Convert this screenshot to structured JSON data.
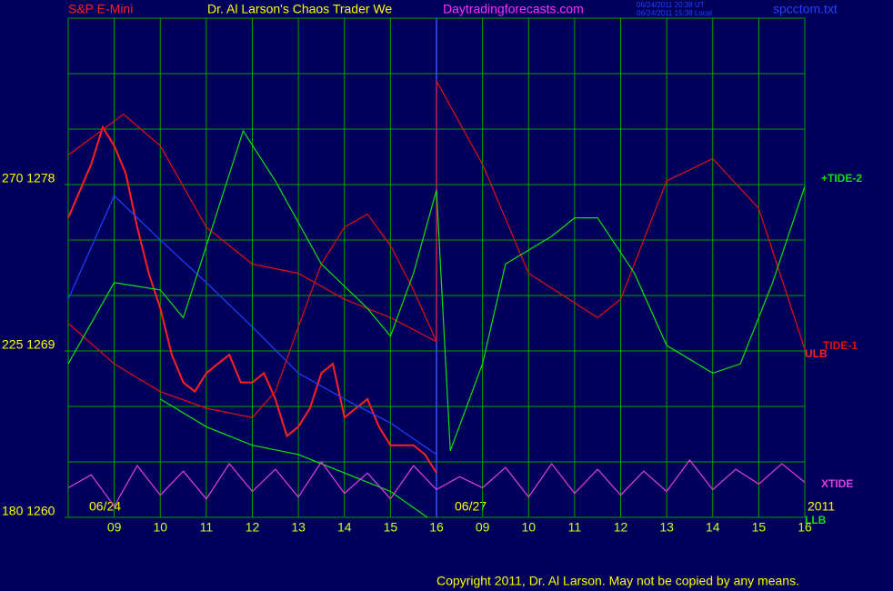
{
  "chart_data": {
    "type": "line",
    "title": "S&P E-Mini",
    "subtitle": "Dr. Al Larson's Chaos Trader We",
    "site": "Daytradingforecasts.com",
    "timestamps": [
      "06/24/2011 20:38 UT",
      "06/24/2011 15:38 Local"
    ],
    "file": "spcctom.txt",
    "footer": "Copyright 2011, Dr. Al Larson. May not be copied by any means.",
    "annotations": [
      "06/24",
      "06/27",
      "2011",
      "ULB",
      "LLB"
    ],
    "xlim": [
      0,
      16
    ],
    "xticks": [
      {
        "value": 1,
        "label": "09"
      },
      {
        "value": 2,
        "label": "10"
      },
      {
        "value": 3,
        "label": "11"
      },
      {
        "value": 4,
        "label": "12"
      },
      {
        "value": 5,
        "label": "13"
      },
      {
        "value": 6,
        "label": "14"
      },
      {
        "value": 7,
        "label": "15"
      },
      {
        "value": 8,
        "label": "16"
      },
      {
        "value": 9,
        "label": "09"
      },
      {
        "value": 10,
        "label": "10"
      },
      {
        "value": 11,
        "label": "11"
      },
      {
        "value": 12,
        "label": "12"
      },
      {
        "value": 13,
        "label": "13"
      },
      {
        "value": 14,
        "label": "14"
      },
      {
        "value": 15,
        "label": "15"
      },
      {
        "value": 16,
        "label": "16"
      }
    ],
    "ylim": [
      1260,
      1287
    ],
    "yticks": [
      {
        "value": 1260,
        "label": "180  1260"
      },
      {
        "value": 1269,
        "label": "225  1269"
      },
      {
        "value": 1278,
        "label": "270  1278"
      }
    ],
    "grid": true,
    "series": [
      {
        "color": "#ff2020",
        "x": [
          0,
          0.5,
          0.75,
          1,
          1.25,
          1.5,
          1.75,
          2,
          2.25,
          2.5,
          2.75,
          3,
          3.25,
          3.5,
          3.75,
          4,
          4.25,
          4.5,
          4.75,
          5,
          5.25,
          5.5,
          5.75,
          6,
          6.25,
          6.5,
          6.75,
          7,
          7.25,
          7.5,
          7.75,
          8
        ],
        "values": [
          1276.2,
          1279.1,
          1281.1,
          1280.1,
          1278.6,
          1275.7,
          1273.2,
          1271.3,
          1268.8,
          1267.3,
          1266.8,
          1267.8,
          1268.3,
          1268.8,
          1267.3,
          1267.3,
          1267.8,
          1266.4,
          1264.4,
          1264.9,
          1265.9,
          1267.8,
          1268.3,
          1265.4,
          1265.9,
          1266.4,
          1264.9,
          1263.9,
          1263.9,
          1263.9,
          1263.4,
          1262.4
        ]
      },
      {
        "color": "#2040ff",
        "x": [
          0,
          1,
          2,
          3,
          4,
          5,
          6,
          7,
          8
        ],
        "values": [
          1271.8,
          1277.4,
          1275.0,
          1272.7,
          1270.3,
          1267.8,
          1266.4,
          1265.1,
          1263.4
        ]
      },
      {
        "name": "TIDE-1",
        "color": "#e01010",
        "x": [
          0,
          1.2,
          2,
          3,
          4,
          5,
          6,
          7,
          8,
          8,
          9,
          10,
          11.5,
          12,
          13,
          14,
          15,
          16
        ],
        "values": [
          1279.6,
          1281.8,
          1280.1,
          1275.7,
          1273.7,
          1273.2,
          1271.8,
          1270.8,
          1269.5,
          1283.6,
          1279.1,
          1273.2,
          1270.8,
          1271.8,
          1278.2,
          1279.4,
          1276.7,
          1269.1
        ]
      },
      {
        "color": "#e01010",
        "x": [
          0,
          1,
          2,
          3,
          4,
          4.5,
          5,
          5.5,
          6,
          6.5,
          7,
          7.5,
          8
        ],
        "values": [
          1270.5,
          1268.3,
          1266.8,
          1265.9,
          1265.4,
          1266.8,
          1270.3,
          1273.7,
          1275.7,
          1276.4,
          1274.7,
          1272.3,
          1269.5
        ]
      },
      {
        "name": "+TIDE-2",
        "color": "#10e010",
        "x": [
          0,
          1,
          2,
          2.5,
          3.8,
          4.5,
          5.5,
          6.5,
          7,
          7.5,
          8,
          8.3,
          9,
          9.5,
          10.5,
          11,
          11.5,
          12.3,
          13,
          14,
          14.6,
          15.3,
          16
        ],
        "values": [
          1268.3,
          1272.7,
          1272.3,
          1270.8,
          1280.9,
          1278.2,
          1273.7,
          1271.3,
          1269.8,
          1273.2,
          1277.7,
          1263.6,
          1268.3,
          1273.7,
          1275.2,
          1276.2,
          1276.2,
          1273.2,
          1269.3,
          1267.8,
          1268.3,
          1272.7,
          1277.9
        ]
      },
      {
        "color": "#10e010",
        "x": [
          2,
          3,
          4,
          5,
          6,
          7,
          7.8
        ],
        "values": [
          1266.4,
          1264.9,
          1263.9,
          1263.4,
          1262.4,
          1261.4,
          1260
        ]
      },
      {
        "name": "XTIDE",
        "color": "#e040e0",
        "x": [
          0,
          0.5,
          1,
          1.5,
          2,
          2.5,
          3,
          3.5,
          4,
          4.5,
          5,
          5.5,
          6,
          6.5,
          7,
          7.5,
          8,
          8.5,
          9,
          9.5,
          10,
          10.5,
          11,
          11.5,
          12,
          12.5,
          13,
          13.5,
          14,
          14.5,
          15,
          15.5,
          16
        ],
        "values": [
          1261.6,
          1262.3,
          1260.6,
          1262.8,
          1261.2,
          1262.5,
          1261.0,
          1262.9,
          1261.4,
          1262.6,
          1261.1,
          1263.0,
          1261.3,
          1262.4,
          1261.0,
          1262.8,
          1261.5,
          1262.2,
          1261.6,
          1262.7,
          1261.1,
          1262.9,
          1261.3,
          1262.6,
          1261.2,
          1262.5,
          1261.4,
          1263.1,
          1261.5,
          1262.6,
          1261.8,
          1262.9,
          1261.9
        ]
      }
    ]
  }
}
